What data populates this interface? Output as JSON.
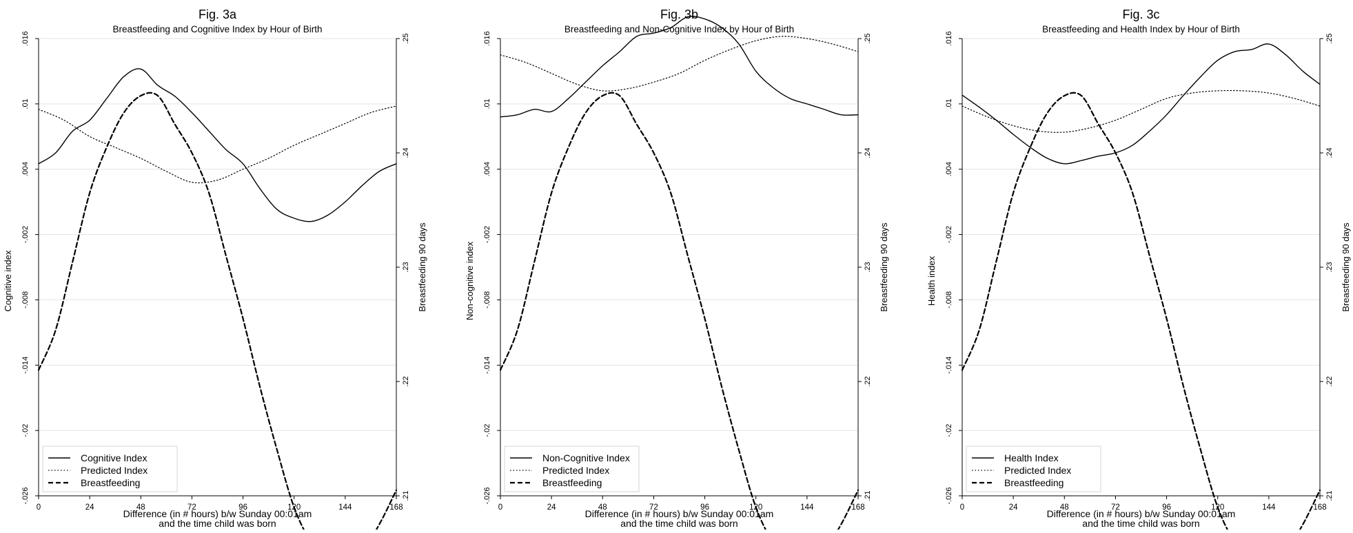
{
  "chart_data": [
    {
      "type": "line",
      "fig_label": "Fig. 3a",
      "title": "Breastfeeding and Cognitive Index by Hour of Birth",
      "xlabel_line1": "Difference (in # hours) b/w Sunday 00:01am",
      "xlabel_line2": "and the time child was born",
      "ylabel_left": "Cognitive index",
      "ylabel_right": "Breastfeeding 90 days",
      "xlim": [
        0,
        168
      ],
      "ylim_left": [
        -0.026,
        0.016
      ],
      "ylim_right": [
        0.21,
        0.25
      ],
      "xticks": [
        0,
        24,
        48,
        72,
        96,
        120,
        144,
        168
      ],
      "yticks_left": [
        -0.026,
        -0.02,
        -0.014,
        -0.008,
        -0.002,
        0.004,
        0.01,
        0.016
      ],
      "ytick_labels_left": [
        "-.026",
        "-.02",
        "-.014",
        "-.008",
        "-.002",
        ".004",
        ".01",
        ".016"
      ],
      "yticks_right": [
        0.21,
        0.22,
        0.23,
        0.24,
        0.25
      ],
      "ytick_labels_right": [
        ".21",
        ".22",
        ".23",
        ".24",
        ".25"
      ],
      "grid": true,
      "legend_position": "bottom-left",
      "series": [
        {
          "name": "Cognitive Index",
          "style": "solid",
          "axis": "left",
          "x": [
            0,
            8,
            16,
            24,
            32,
            40,
            48,
            56,
            64,
            72,
            80,
            88,
            96,
            104,
            112,
            120,
            128,
            136,
            144,
            152,
            160,
            168
          ],
          "y": [
            0.0045,
            0.0055,
            0.0075,
            0.0085,
            0.0105,
            0.0125,
            0.0132,
            0.0117,
            0.0107,
            0.0092,
            0.0075,
            0.0058,
            0.0045,
            0.0022,
            0.0003,
            -0.0005,
            -0.0008,
            -0.0002,
            0.001,
            0.0025,
            0.0038,
            0.0045
          ]
        },
        {
          "name": "Predicted Index",
          "style": "dotted",
          "axis": "left",
          "x": [
            0,
            12,
            24,
            36,
            48,
            60,
            72,
            84,
            96,
            108,
            120,
            132,
            144,
            156,
            168
          ],
          "y": [
            0.0095,
            0.0085,
            0.007,
            0.006,
            0.005,
            0.0038,
            0.0028,
            0.003,
            0.004,
            0.005,
            0.0062,
            0.0072,
            0.0082,
            0.0092,
            0.0098
          ]
        },
        {
          "name": "Breastfeeding",
          "style": "dashed",
          "axis": "right",
          "x": [
            0,
            8,
            16,
            24,
            32,
            40,
            48,
            56,
            64,
            72,
            80,
            88,
            96,
            104,
            112,
            120,
            128,
            136,
            144,
            152,
            160,
            168
          ],
          "y": [
            0.221,
            0.2245,
            0.2305,
            0.2365,
            0.2405,
            0.2435,
            0.245,
            0.245,
            0.2425,
            0.24,
            0.2365,
            0.231,
            0.2255,
            0.2195,
            0.214,
            0.209,
            0.206,
            0.205,
            0.2045,
            0.2052,
            0.2075,
            0.2105
          ]
        }
      ]
    },
    {
      "type": "line",
      "fig_label": "Fig. 3b",
      "title": "Breastfeeding and Non-Cognitive Index by Hour of Birth",
      "xlabel_line1": "Difference (in # hours) b/w Sunday 00:01am",
      "xlabel_line2": "and the time child was born",
      "ylabel_left": "Non-cognitive index",
      "ylabel_right": "Breastfeeding 90 days",
      "xlim": [
        0,
        168
      ],
      "ylim_left": [
        -0.026,
        0.016
      ],
      "ylim_right": [
        0.21,
        0.25
      ],
      "xticks": [
        0,
        24,
        48,
        72,
        96,
        120,
        144,
        168
      ],
      "yticks_left": [
        -0.026,
        -0.02,
        -0.014,
        -0.008,
        -0.002,
        0.004,
        0.01,
        0.016
      ],
      "ytick_labels_left": [
        "-.026",
        "-.02",
        "-.014",
        "-.008",
        "-.002",
        ".004",
        ".01",
        ".016"
      ],
      "yticks_right": [
        0.21,
        0.22,
        0.23,
        0.24,
        0.25
      ],
      "ytick_labels_right": [
        ".21",
        ".22",
        ".23",
        ".24",
        ".25"
      ],
      "grid": true,
      "legend_position": "bottom-left",
      "series": [
        {
          "name": "Non-Cognitive Index",
          "style": "solid",
          "axis": "left",
          "x": [
            0,
            8,
            16,
            24,
            32,
            40,
            48,
            56,
            64,
            72,
            80,
            88,
            96,
            104,
            112,
            120,
            128,
            136,
            144,
            152,
            160,
            168
          ],
          "y": [
            0.0088,
            0.009,
            0.0095,
            0.0093,
            0.0105,
            0.012,
            0.0135,
            0.0148,
            0.0162,
            0.0165,
            0.017,
            0.018,
            0.0178,
            0.017,
            0.0155,
            0.013,
            0.0115,
            0.0105,
            0.01,
            0.0095,
            0.009,
            0.009
          ]
        },
        {
          "name": "Predicted Index",
          "style": "dotted",
          "axis": "left",
          "x": [
            0,
            12,
            24,
            36,
            48,
            60,
            72,
            84,
            96,
            108,
            120,
            132,
            144,
            156,
            168
          ],
          "y": [
            0.0145,
            0.0138,
            0.0128,
            0.0118,
            0.0112,
            0.0114,
            0.012,
            0.0128,
            0.014,
            0.015,
            0.0158,
            0.0162,
            0.016,
            0.0155,
            0.0148
          ]
        },
        {
          "name": "Breastfeeding",
          "style": "dashed",
          "axis": "right",
          "x": [
            0,
            8,
            16,
            24,
            32,
            40,
            48,
            56,
            64,
            72,
            80,
            88,
            96,
            104,
            112,
            120,
            128,
            136,
            144,
            152,
            160,
            168
          ],
          "y": [
            0.221,
            0.2245,
            0.2305,
            0.2365,
            0.2405,
            0.2435,
            0.245,
            0.245,
            0.2425,
            0.24,
            0.2365,
            0.231,
            0.2255,
            0.2195,
            0.214,
            0.209,
            0.206,
            0.205,
            0.2045,
            0.2052,
            0.2075,
            0.2105
          ]
        }
      ]
    },
    {
      "type": "line",
      "fig_label": "Fig. 3c",
      "title": "Breastfeeding and Health Index by Hour of Birth",
      "xlabel_line1": "Difference (in # hours) b/w Sunday 00:01am",
      "xlabel_line2": "and the time child was born",
      "ylabel_left": "Health index",
      "ylabel_right": "Breastfeeding 90 days",
      "xlim": [
        0,
        168
      ],
      "ylim_left": [
        -0.026,
        0.016
      ],
      "ylim_right": [
        0.21,
        0.25
      ],
      "xticks": [
        0,
        24,
        48,
        72,
        96,
        120,
        144,
        168
      ],
      "yticks_left": [
        -0.026,
        -0.02,
        -0.014,
        -0.008,
        -0.002,
        0.004,
        0.01,
        0.016
      ],
      "ytick_labels_left": [
        "-.026",
        "-.02",
        "-.014",
        "-.008",
        "-.002",
        ".004",
        ".01",
        ".016"
      ],
      "yticks_right": [
        0.21,
        0.22,
        0.23,
        0.24,
        0.25
      ],
      "ytick_labels_right": [
        ".21",
        ".22",
        ".23",
        ".24",
        ".25"
      ],
      "grid": true,
      "legend_position": "bottom-left",
      "series": [
        {
          "name": "Health Index",
          "style": "solid",
          "axis": "left",
          "x": [
            0,
            8,
            16,
            24,
            32,
            40,
            48,
            56,
            64,
            72,
            80,
            88,
            96,
            104,
            112,
            120,
            128,
            136,
            144,
            152,
            160,
            168
          ],
          "y": [
            0.0108,
            0.0097,
            0.0085,
            0.0072,
            0.006,
            0.005,
            0.0045,
            0.0048,
            0.0052,
            0.0055,
            0.0062,
            0.0075,
            0.009,
            0.0108,
            0.0125,
            0.014,
            0.0148,
            0.015,
            0.0155,
            0.0145,
            0.013,
            0.0118
          ]
        },
        {
          "name": "Predicted Index",
          "style": "dotted",
          "axis": "left",
          "x": [
            0,
            12,
            24,
            36,
            48,
            60,
            72,
            84,
            96,
            108,
            120,
            132,
            144,
            156,
            168
          ],
          "y": [
            0.0098,
            0.0088,
            0.008,
            0.0075,
            0.0074,
            0.0078,
            0.0085,
            0.0095,
            0.0105,
            0.011,
            0.0112,
            0.0112,
            0.011,
            0.0105,
            0.0098
          ]
        },
        {
          "name": "Breastfeeding",
          "style": "dashed",
          "axis": "right",
          "x": [
            0,
            8,
            16,
            24,
            32,
            40,
            48,
            56,
            64,
            72,
            80,
            88,
            96,
            104,
            112,
            120,
            128,
            136,
            144,
            152,
            160,
            168
          ],
          "y": [
            0.221,
            0.2245,
            0.2305,
            0.2365,
            0.2405,
            0.2435,
            0.245,
            0.245,
            0.2425,
            0.24,
            0.2365,
            0.231,
            0.2255,
            0.2195,
            0.214,
            0.209,
            0.206,
            0.205,
            0.2045,
            0.2052,
            0.2075,
            0.2105
          ]
        }
      ]
    }
  ]
}
